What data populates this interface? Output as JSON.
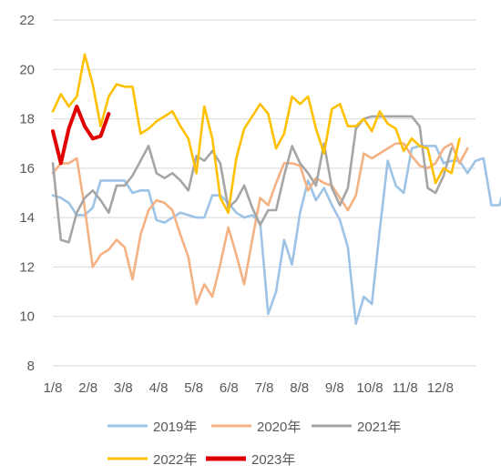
{
  "chart_data": {
    "type": "line",
    "title": "",
    "xlabel": "",
    "ylabel": "",
    "ylim": [
      8,
      22
    ],
    "y_ticks": [
      8,
      10,
      12,
      14,
      16,
      18,
      20,
      22
    ],
    "x_ticks": [
      "1/8",
      "2/8",
      "3/8",
      "4/8",
      "5/8",
      "6/8",
      "7/8",
      "8/8",
      "9/8",
      "10/8",
      "11/8",
      "12/8"
    ],
    "x_period_weeks": 53,
    "grid": "horizontal",
    "legend": "bottom",
    "series": [
      {
        "name": "2019年",
        "color": "#9DC3E6",
        "values": [
          14.9,
          14.8,
          14.6,
          14.1,
          14.1,
          14.4,
          15.5,
          15.5,
          15.5,
          15.5,
          15.0,
          15.1,
          15.1,
          13.9,
          13.8,
          14.0,
          14.2,
          14.1,
          14.0,
          14.0,
          14.9,
          14.9,
          14.6,
          14.2,
          14.0,
          14.1,
          13.8,
          10.1,
          11.0,
          13.1,
          12.1,
          14.2,
          15.5,
          14.7,
          15.2,
          14.5,
          13.9,
          12.8,
          9.7,
          10.8,
          10.5,
          13.5,
          16.3,
          15.3,
          15.0,
          16.8,
          16.9,
          16.9,
          16.9,
          16.2,
          16.3,
          16.3,
          15.8,
          16.3,
          16.4,
          14.5,
          14.5,
          15.6
        ]
      },
      {
        "name": "2020年",
        "color": "#F4B183",
        "values": [
          15.8,
          16.2,
          16.2,
          16.4,
          14.4,
          12.0,
          12.5,
          12.7,
          13.1,
          12.8,
          11.5,
          13.3,
          14.3,
          14.7,
          14.6,
          14.3,
          13.3,
          12.4,
          10.5,
          11.3,
          10.8,
          12.1,
          13.6,
          12.5,
          11.3,
          13.1,
          14.8,
          14.5,
          15.4,
          16.2,
          16.2,
          16.1,
          15.1,
          15.6,
          15.4,
          15.3,
          14.8,
          14.3,
          14.9,
          16.6,
          16.4,
          16.6,
          16.8,
          17.0,
          17.0,
          16.5,
          16.1,
          16.0,
          16.2,
          16.8,
          17.0,
          16.2,
          16.8
        ]
      },
      {
        "name": "2021年",
        "color": "#A5A5A5",
        "values": [
          16.2,
          13.1,
          13.0,
          14.2,
          14.8,
          15.1,
          14.7,
          14.2,
          15.3,
          15.3,
          15.7,
          16.3,
          16.9,
          15.8,
          15.6,
          15.8,
          15.5,
          15.1,
          16.5,
          16.3,
          16.7,
          16.2,
          14.4,
          14.7,
          15.3,
          14.4,
          13.7,
          14.3,
          14.3,
          15.7,
          16.9,
          16.2,
          15.8,
          15.3,
          17.0,
          15.2,
          14.5,
          15.2,
          17.6,
          18.0,
          18.1,
          18.1,
          18.1,
          18.1,
          18.1,
          18.1,
          17.7,
          15.2,
          15.0,
          15.7,
          16.8
        ]
      },
      {
        "name": "2022年",
        "color": "#FFC000",
        "values": [
          18.3,
          19.0,
          18.5,
          18.9,
          20.6,
          19.4,
          17.7,
          18.9,
          19.4,
          19.3,
          19.3,
          17.4,
          17.6,
          17.9,
          18.1,
          18.3,
          17.7,
          17.2,
          15.8,
          18.5,
          17.2,
          14.8,
          14.2,
          16.4,
          17.6,
          18.1,
          18.6,
          18.2,
          16.8,
          17.4,
          18.9,
          18.6,
          18.9,
          17.6,
          16.6,
          18.4,
          18.6,
          17.7,
          17.7,
          18.0,
          17.5,
          18.3,
          17.8,
          17.6,
          16.7,
          17.2,
          16.9,
          16.8,
          15.4,
          16.0,
          15.8,
          17.2
        ]
      },
      {
        "name": "2023年",
        "color": "#E00000",
        "values": [
          17.5,
          16.2,
          17.6,
          18.5,
          17.7,
          17.2,
          17.3,
          18.2
        ]
      }
    ]
  }
}
